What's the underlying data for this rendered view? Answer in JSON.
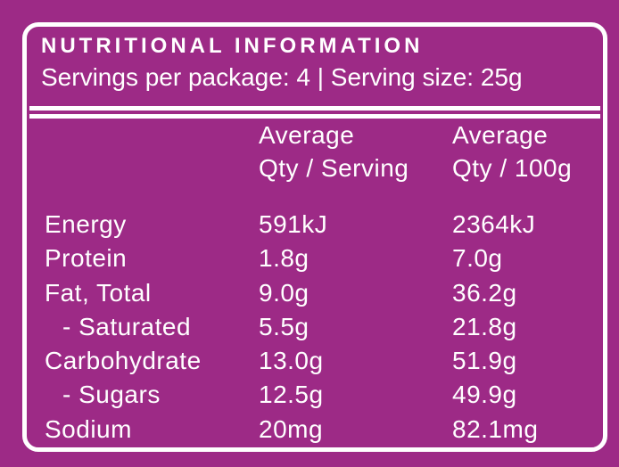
{
  "colors": {
    "background": "#9D2A86",
    "line": "#FFFFFF",
    "text": "#FFFFFF"
  },
  "panel": {
    "title": "NUTRITIONAL INFORMATION",
    "servings_info": "Servings per package: 4 | Serving size: 25g"
  },
  "table": {
    "col_headers": {
      "serving": {
        "line1": "Average",
        "line2": "Qty / Serving"
      },
      "per100g": {
        "line1": "Average",
        "line2": "Qty / 100g"
      }
    },
    "rows": [
      {
        "label": "Energy",
        "indent": false,
        "per_serving": "591kJ",
        "per_100g": "2364kJ"
      },
      {
        "label": "Protein",
        "indent": false,
        "per_serving": "1.8g",
        "per_100g": "7.0g"
      },
      {
        "label": "Fat, Total",
        "indent": false,
        "per_serving": "9.0g",
        "per_100g": "36.2g"
      },
      {
        "label": "- Saturated",
        "indent": true,
        "per_serving": "5.5g",
        "per_100g": "21.8g"
      },
      {
        "label": "Carbohydrate",
        "indent": false,
        "per_serving": "13.0g",
        "per_100g": "51.9g"
      },
      {
        "label": "- Sugars",
        "indent": true,
        "per_serving": "12.5g",
        "per_100g": "49.9g"
      },
      {
        "label": "Sodium",
        "indent": false,
        "per_serving": "20mg",
        "per_100g": "82.1mg"
      }
    ]
  }
}
